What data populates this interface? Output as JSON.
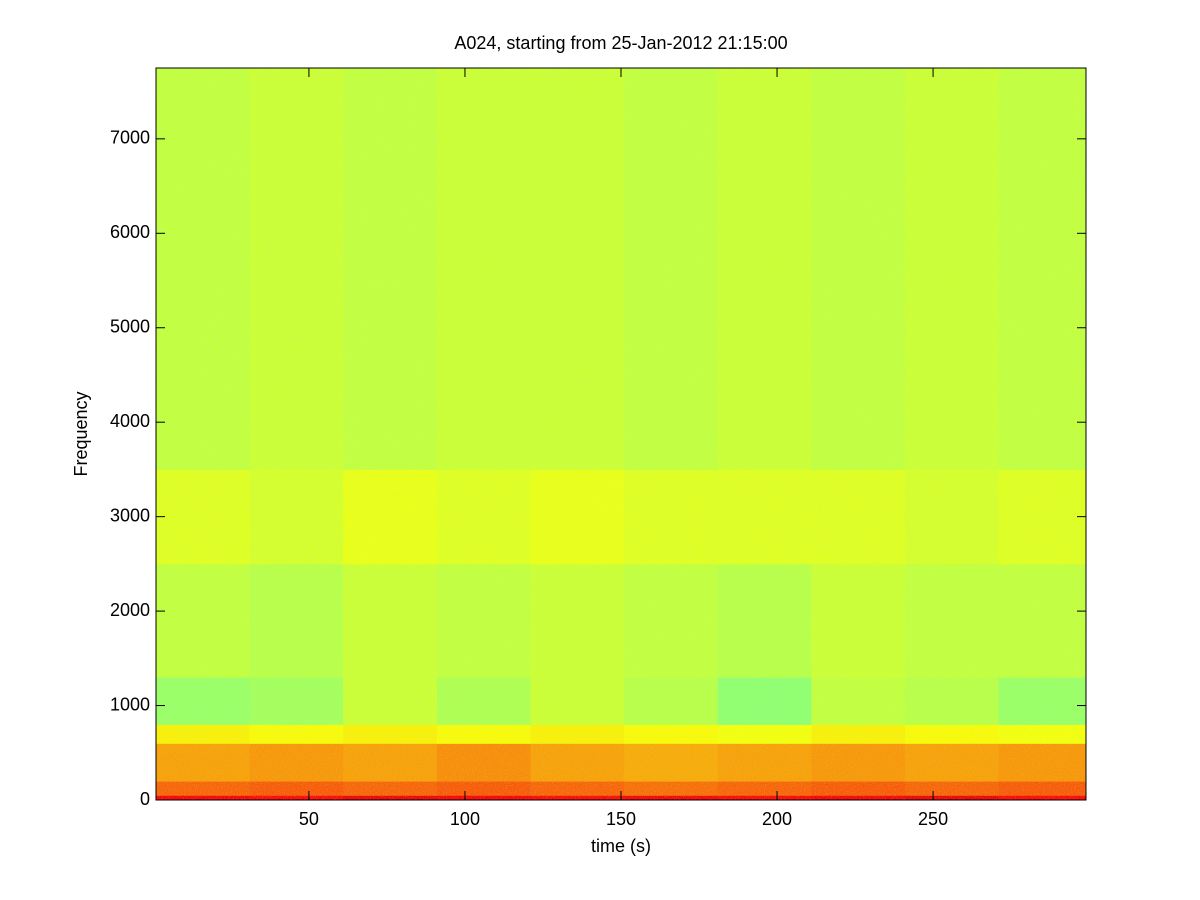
{
  "chart_data": {
    "type": "heatmap",
    "title": "A024, starting from 25-Jan-2012 21:15:00",
    "x_label": "time (s)",
    "y_label": "Frequency",
    "xlim": [
      1,
      299
    ],
    "ylim": [
      0,
      7750
    ],
    "xticks": [
      50,
      100,
      150,
      200,
      250
    ],
    "yticks": [
      0,
      1000,
      2000,
      3000,
      4000,
      5000,
      6000,
      7000
    ],
    "x_edges": [
      1,
      31,
      61,
      91,
      121,
      151,
      181,
      211,
      241,
      271,
      299
    ],
    "y_edges": [
      0,
      50,
      200,
      600,
      800,
      1300,
      2500,
      3500,
      7750
    ],
    "colormap": "jet",
    "clim": [
      0,
      1
    ],
    "z": [
      [
        0.88,
        0.87,
        0.89,
        0.88,
        0.87,
        0.88,
        0.87,
        0.88,
        0.89,
        0.87
      ],
      [
        0.78,
        0.79,
        0.78,
        0.79,
        0.78,
        0.77,
        0.78,
        0.79,
        0.78,
        0.79
      ],
      [
        0.72,
        0.73,
        0.72,
        0.74,
        0.72,
        0.71,
        0.72,
        0.73,
        0.72,
        0.73
      ],
      [
        0.64,
        0.63,
        0.64,
        0.63,
        0.64,
        0.63,
        0.62,
        0.64,
        0.63,
        0.62
      ],
      [
        0.53,
        0.54,
        0.58,
        0.55,
        0.58,
        0.56,
        0.52,
        0.57,
        0.56,
        0.53
      ],
      [
        0.57,
        0.56,
        0.58,
        0.57,
        0.58,
        0.57,
        0.56,
        0.58,
        0.57,
        0.57
      ],
      [
        0.6,
        0.59,
        0.61,
        0.6,
        0.61,
        0.6,
        0.6,
        0.6,
        0.59,
        0.6
      ],
      [
        0.57,
        0.58,
        0.57,
        0.58,
        0.58,
        0.57,
        0.58,
        0.57,
        0.58,
        0.57
      ]
    ]
  }
}
